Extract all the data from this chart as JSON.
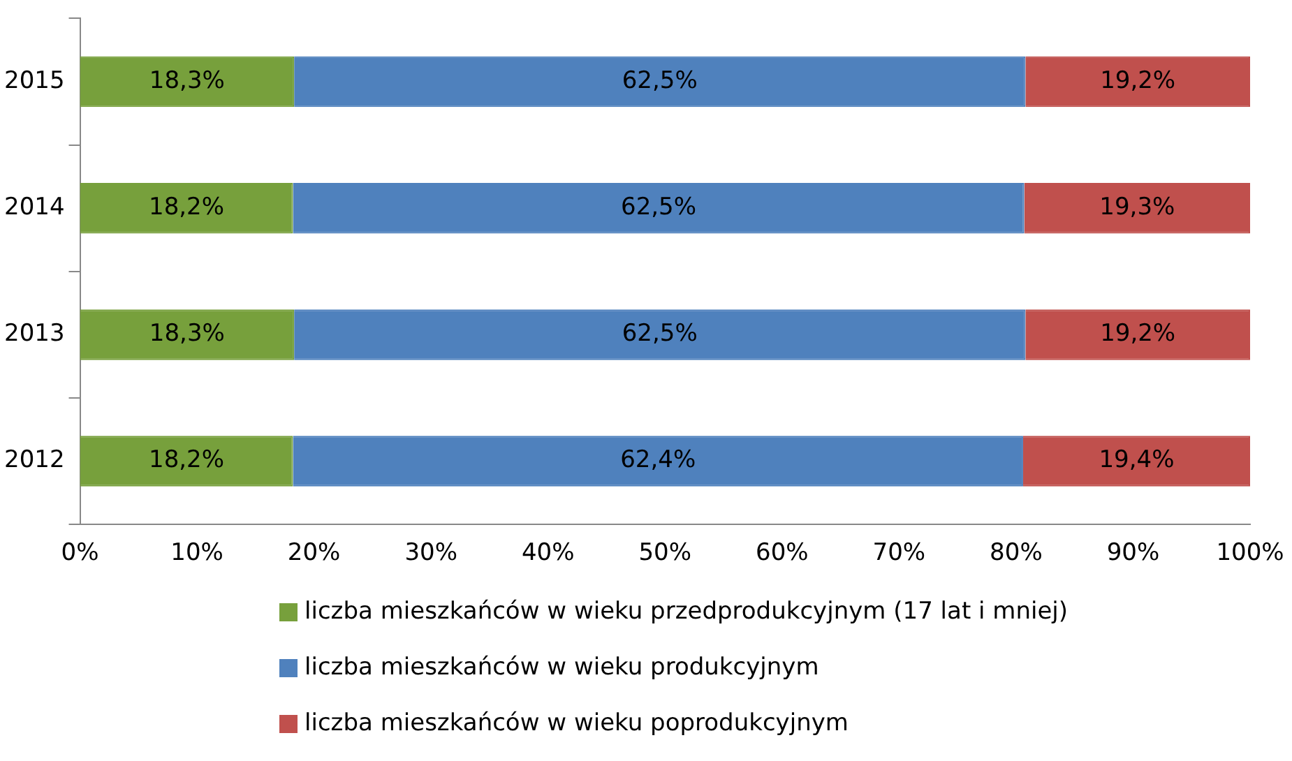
{
  "chart_data": {
    "type": "bar",
    "orientation": "horizontal",
    "stacked": true,
    "categories": [
      "2015",
      "2014",
      "2013",
      "2012"
    ],
    "series": [
      {
        "name": "liczba mieszkańców w wieku przedprodukcyjnym (17 lat i mniej)",
        "color": "#77a03c",
        "values": [
          18.3,
          18.2,
          18.3,
          18.2
        ],
        "value_labels": [
          "18,3%",
          "18,2%",
          "18,3%",
          "18,2%"
        ]
      },
      {
        "name": "liczba mieszkańców w wieku produkcyjnym",
        "color": "#4f81bd",
        "values": [
          62.5,
          62.5,
          62.5,
          62.4
        ],
        "value_labels": [
          "62,5%",
          "62,5%",
          "62,5%",
          "62,4%"
        ]
      },
      {
        "name": "liczba mieszkańców w wieku poprodukcyjnym",
        "color": "#c0504d",
        "values": [
          19.2,
          19.3,
          19.2,
          19.4
        ],
        "value_labels": [
          "19,2%",
          "19,3%",
          "19,2%",
          "19,4%"
        ]
      }
    ],
    "xlim": [
      0,
      100
    ],
    "xticks": [
      {
        "value": 0,
        "label": "0%"
      },
      {
        "value": 10,
        "label": "10%"
      },
      {
        "value": 20,
        "label": "20%"
      },
      {
        "value": 30,
        "label": "30%"
      },
      {
        "value": 40,
        "label": "40%"
      },
      {
        "value": 50,
        "label": "50%"
      },
      {
        "value": 60,
        "label": "60%"
      },
      {
        "value": 70,
        "label": "70%"
      },
      {
        "value": 80,
        "label": "80%"
      },
      {
        "value": 90,
        "label": "90%"
      },
      {
        "value": 100,
        "label": "100%"
      }
    ],
    "grid": false,
    "legend": "bottom"
  }
}
